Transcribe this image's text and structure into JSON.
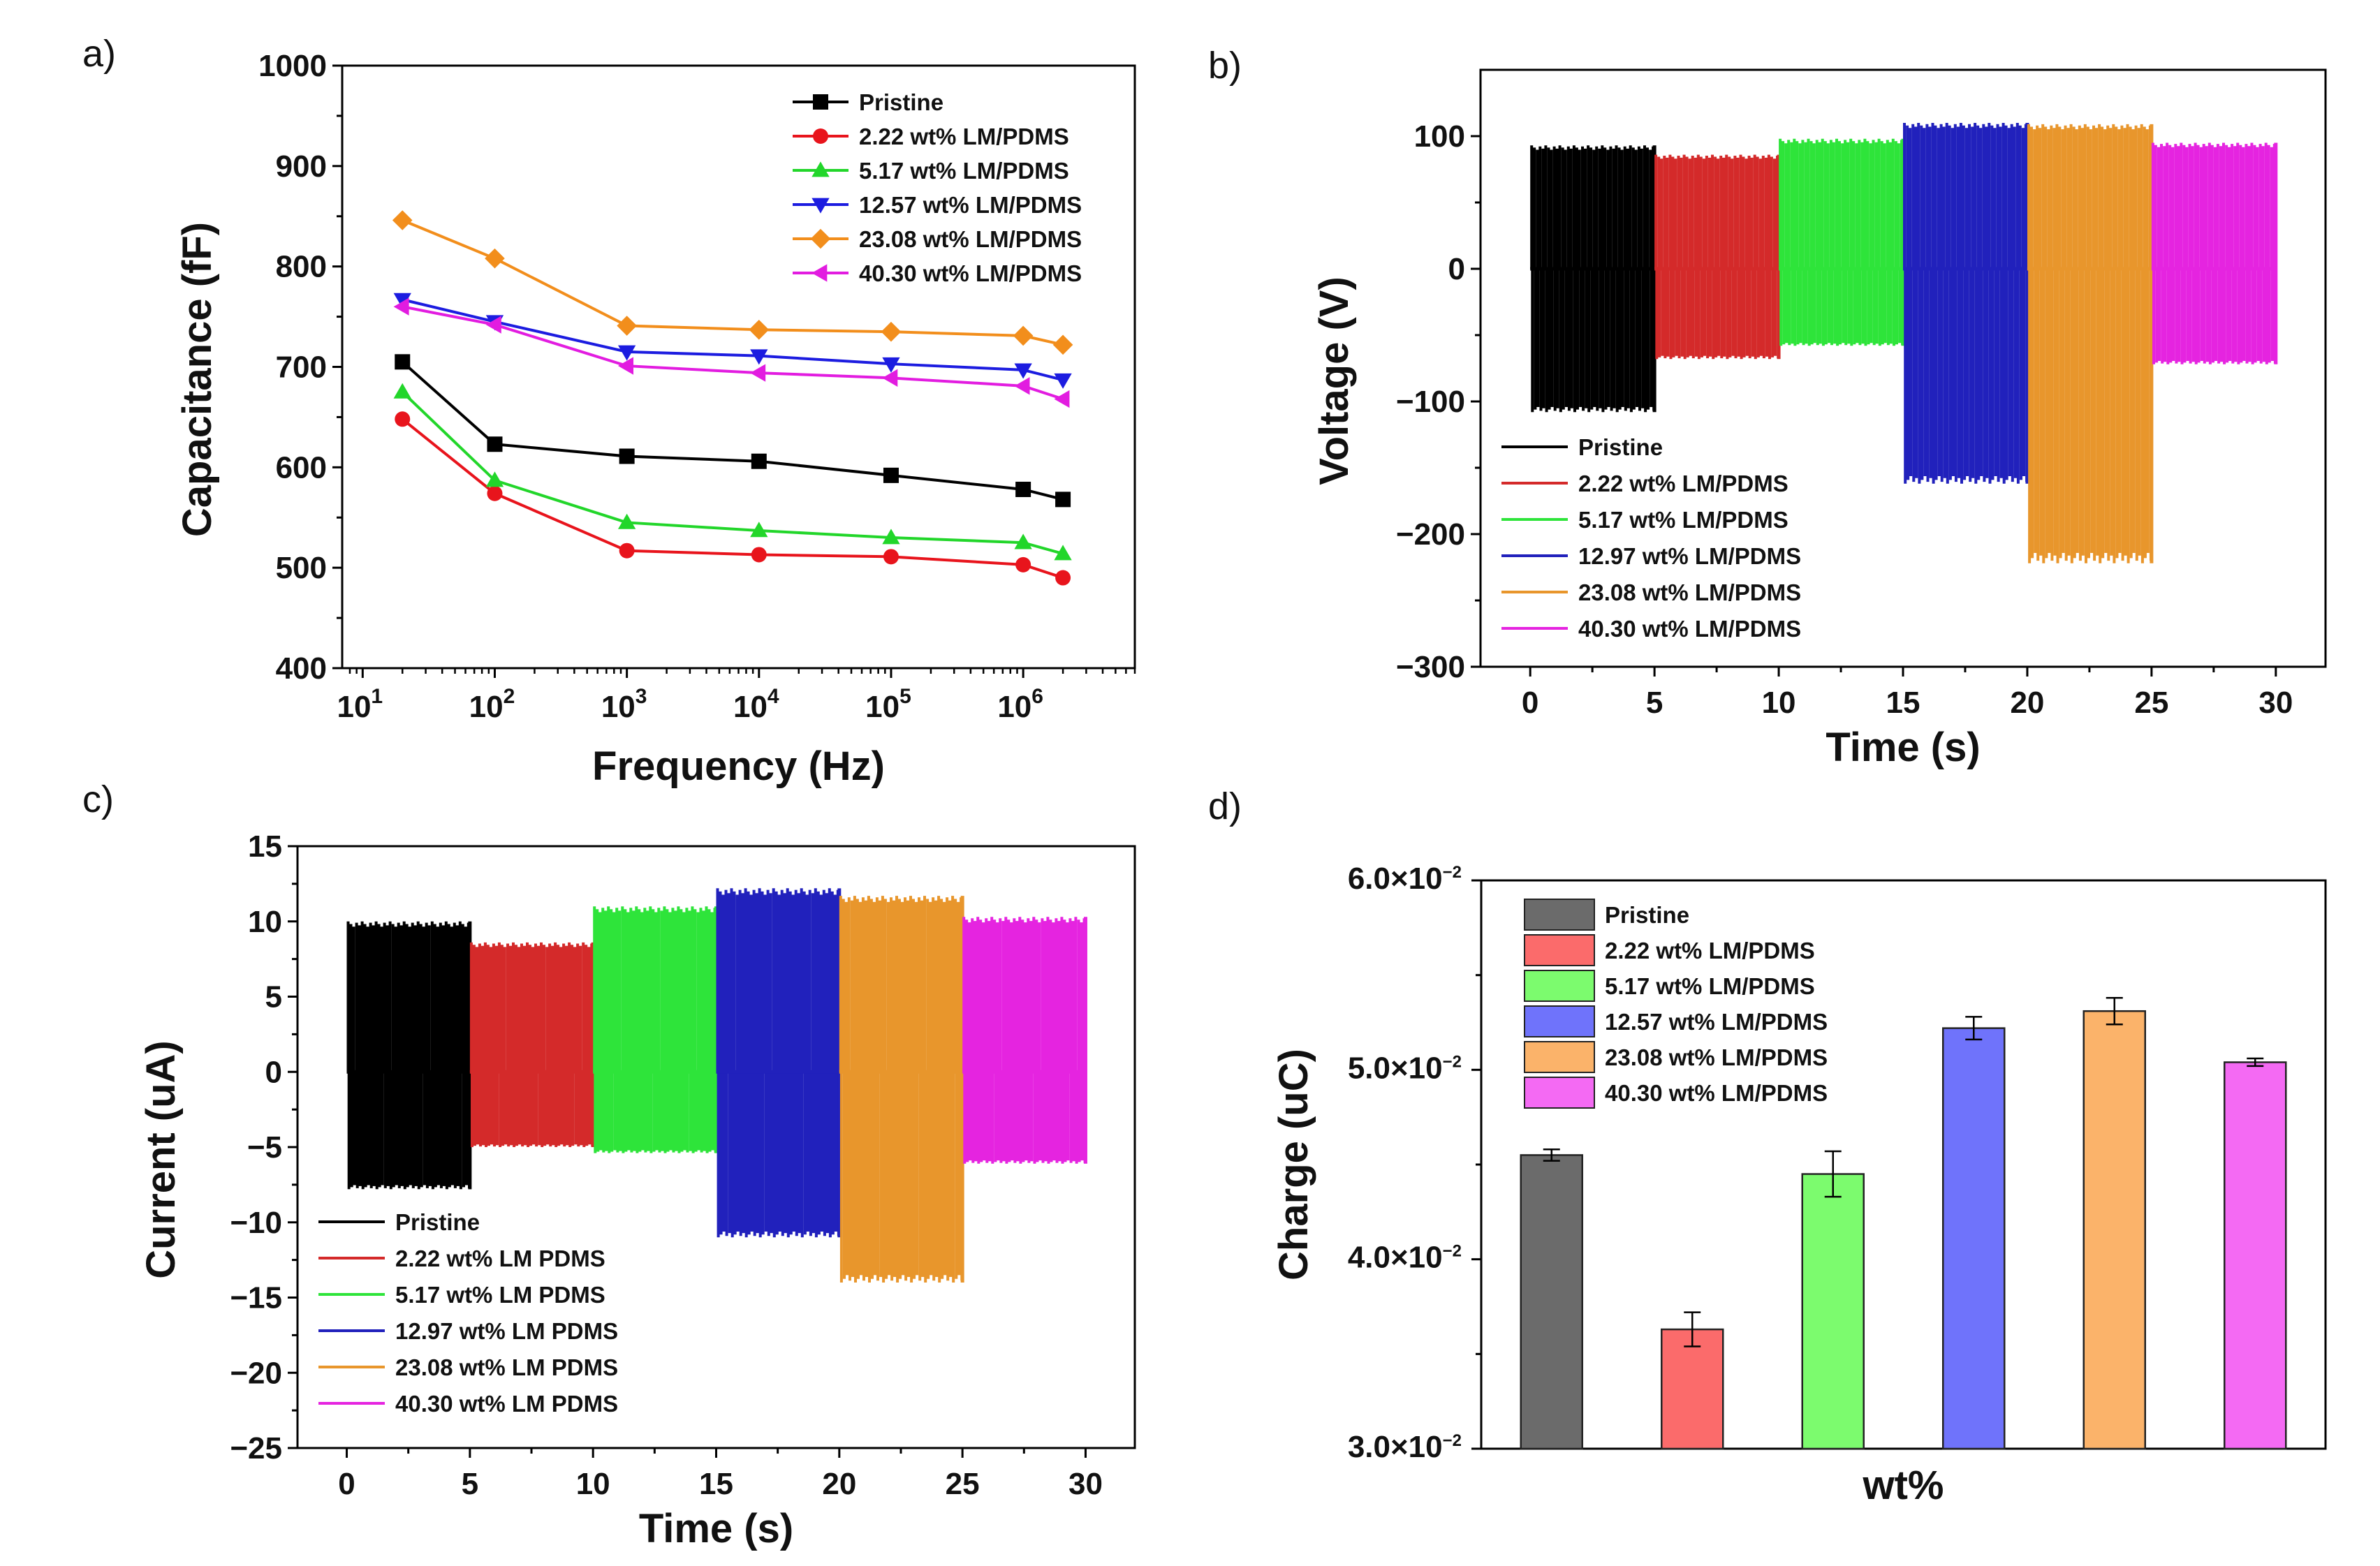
{
  "panels": {
    "a": {
      "label": "a)",
      "chart_data": {
        "type": "line",
        "xscale": "log",
        "xlabel": "Frequency (Hz)",
        "ylabel": "Capacitance (fF)",
        "ylim": [
          400,
          1000
        ],
        "yticks": [
          "400",
          "500",
          "600",
          "700",
          "800",
          "900",
          "1000"
        ],
        "xtick_bases": [
          "10",
          "10",
          "10",
          "10",
          "10",
          "10"
        ],
        "xtick_exps": [
          "1",
          "2",
          "3",
          "4",
          "5",
          "6"
        ],
        "x": [
          20,
          100,
          1000,
          10000,
          100000,
          1000000,
          2000000
        ],
        "legend_position": "top-right",
        "series": [
          {
            "name": "Pristine",
            "color": "#000000",
            "marker": "square",
            "values": [
              705,
              623,
              611,
              606,
              592,
              578,
              568
            ]
          },
          {
            "name": "2.22 wt% LM/PDMS",
            "color": "#e8141c",
            "marker": "circle",
            "values": [
              648,
              574,
              517,
              513,
              511,
              503,
              490
            ]
          },
          {
            "name": "5.17 wt% LM/PDMS",
            "color": "#22d62a",
            "marker": "triangle-up",
            "values": [
              675,
              587,
              545,
              537,
              530,
              525,
              514
            ]
          },
          {
            "name": "12.57 wt% LM/PDMS",
            "color": "#1c1ce0",
            "marker": "triangle-down",
            "values": [
              767,
              745,
              715,
              711,
              703,
              697,
              687
            ]
          },
          {
            "name": "23.08 wt% LM/PDMS",
            "color": "#f28e1c",
            "marker": "diamond",
            "values": [
              846,
              808,
              741,
              737,
              735,
              731,
              722
            ]
          },
          {
            "name": "40.30 wt% LM/PDMS",
            "color": "#e21ce0",
            "marker": "triangle-left",
            "values": [
              760,
              742,
              701,
              694,
              689,
              681,
              668
            ]
          }
        ]
      }
    },
    "b": {
      "label": "b)",
      "chart_data": {
        "type": "line",
        "xlabel": "Time (s)",
        "ylabel": "Voltage (V)",
        "xlim": [
          -2,
          32
        ],
        "ylim": [
          -300,
          150
        ],
        "xticks": [
          "0",
          "5",
          "10",
          "15",
          "20",
          "25",
          "30"
        ],
        "yticks": [
          "−300",
          "−200",
          "−100",
          "0",
          "100"
        ],
        "legend_position": "bottom-left",
        "series": [
          {
            "name": "Pristine",
            "color": "#000000",
            "t_start": 0,
            "t_end": 5,
            "peak_max": 93,
            "peak_min": -108
          },
          {
            "name": "2.22 wt% LM/PDMS",
            "color": "#d42a2a",
            "t_start": 5,
            "t_end": 10,
            "peak_max": 86,
            "peak_min": -68
          },
          {
            "name": "5.17 wt% LM/PDMS",
            "color": "#2ee43a",
            "t_start": 10,
            "t_end": 15,
            "peak_max": 98,
            "peak_min": -58
          },
          {
            "name": "12.97 wt% LM/PDMS",
            "color": "#2121bc",
            "t_start": 15,
            "t_end": 20,
            "peak_max": 110,
            "peak_min": -162
          },
          {
            "name": "23.08 wt% LM/PDMS",
            "color": "#e8962c",
            "t_start": 20,
            "t_end": 25,
            "peak_max": 109,
            "peak_min": -222
          },
          {
            "name": "40.30 wt% LM/PDMS",
            "color": "#e524e0",
            "t_start": 25,
            "t_end": 30,
            "peak_max": 95,
            "peak_min": -72
          }
        ]
      }
    },
    "c": {
      "label": "c)",
      "chart_data": {
        "type": "line",
        "xlabel": "Time (s)",
        "ylabel": "Current (uA)",
        "xlim": [
          -2,
          32
        ],
        "ylim": [
          -25,
          15
        ],
        "xticks": [
          "0",
          "5",
          "10",
          "15",
          "20",
          "25",
          "30"
        ],
        "yticks": [
          "−25",
          "−20",
          "−15",
          "−10",
          "−5",
          "0",
          "5",
          "10",
          "15"
        ],
        "legend_position": "bottom-left",
        "series": [
          {
            "name": "Pristine",
            "color": "#000000",
            "t_start": 0,
            "t_end": 5,
            "peak_max": 10,
            "peak_min": -7.8
          },
          {
            "name": "2.22 wt% LM PDMS",
            "color": "#d42a2a",
            "t_start": 5,
            "t_end": 10,
            "peak_max": 8.6,
            "peak_min": -5
          },
          {
            "name": "5.17 wt% LM PDMS",
            "color": "#2ee43a",
            "t_start": 10,
            "t_end": 15,
            "peak_max": 11,
            "peak_min": -5.4
          },
          {
            "name": "12.97 wt% LM PDMS",
            "color": "#2121bc",
            "t_start": 15,
            "t_end": 20,
            "peak_max": 12.2,
            "peak_min": -11
          },
          {
            "name": "23.08 wt% LM PDMS",
            "color": "#e8962c",
            "t_start": 20,
            "t_end": 25,
            "peak_max": 11.7,
            "peak_min": -14
          },
          {
            "name": "40.30 wt% LM PDMS",
            "color": "#e524e0",
            "t_start": 25,
            "t_end": 30,
            "peak_max": 10.3,
            "peak_min": -6.1
          }
        ]
      }
    },
    "d": {
      "label": "d)",
      "chart_data": {
        "type": "bar",
        "xlabel": "wt%",
        "ylabel": "Charge (uC)",
        "ylim": [
          0.03,
          0.06
        ],
        "ytick_values": [
          0.03,
          0.04,
          0.05,
          0.06
        ],
        "ytick_mantissas": [
          "3.0×10",
          "4.0×10",
          "5.0×10",
          "6.0×10"
        ],
        "ytick_exp": "−2",
        "legend_position": "top-left",
        "categories": [
          "Pristine",
          "2.22 wt% LM/PDMS",
          "5.17 wt% LM/PDMS",
          "12.57 wt% LM/PDMS",
          "23.08 wt% LM/PDMS",
          "40.30 wt% LM/PDMS"
        ],
        "colors": [
          "#6b6b6b",
          "#fb6b6b",
          "#7cfb6e",
          "#6f73fb",
          "#fbb36a",
          "#f46af3"
        ],
        "values": [
          0.0455,
          0.0363,
          0.0445,
          0.0522,
          0.0531,
          0.0504
        ],
        "errors": [
          0.0003,
          0.0009,
          0.0012,
          0.0006,
          0.0007,
          0.0002
        ]
      }
    }
  }
}
